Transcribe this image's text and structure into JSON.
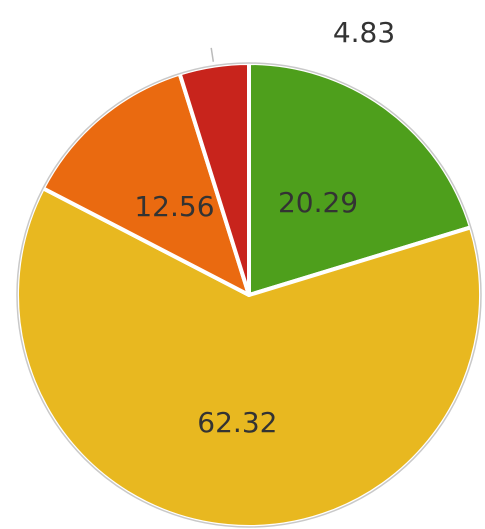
{
  "chart_data": {
    "type": "pie",
    "slices": [
      {
        "value": 20.29,
        "label": "20.29",
        "color": "#4e9f1c"
      },
      {
        "value": 62.32,
        "label": "62.32",
        "color": "#e8b820"
      },
      {
        "value": 12.56,
        "label": "12.56",
        "color": "#ea6a10"
      },
      {
        "value": 4.83,
        "label": "4.83",
        "color": "#c8241c"
      }
    ],
    "start_angle_deg": 0,
    "direction": "clockwise",
    "legend": "none"
  }
}
